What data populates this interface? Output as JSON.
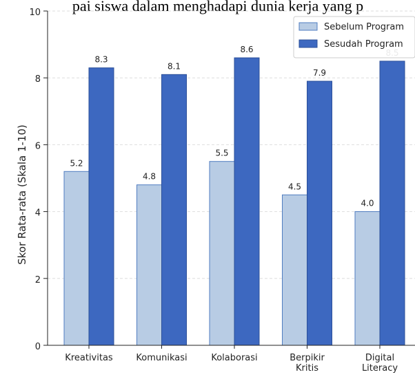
{
  "chart_data": {
    "type": "bar",
    "title": "pai siswa dalam menghadapi dunia kerja yang p",
    "xlabel": "",
    "ylabel": "Skor Rata-rata (Skala 1-10)",
    "ylim": [
      0,
      10
    ],
    "yticks": [
      0,
      2,
      4,
      6,
      8,
      10
    ],
    "categories": [
      "Kreativitas",
      "Komunikasi",
      "Kolaborasi",
      "Berpikir\nKritis",
      "Digital\nLiteracy"
    ],
    "series": [
      {
        "name": "Sebelum Program",
        "values": [
          5.2,
          4.8,
          5.5,
          4.5,
          4.0
        ],
        "color": "#b8cce4",
        "edge": "#4f7cc0"
      },
      {
        "name": "Sesudah Program",
        "values": [
          8.3,
          8.1,
          8.6,
          7.9,
          8.5
        ],
        "color": "#3d68c0",
        "edge": "#2b4f99"
      }
    ],
    "data_labels": [
      [
        "5.2",
        "4.8",
        "5.5",
        "4.5",
        "4.0"
      ],
      [
        "8.3",
        "8.1",
        "8.6",
        "7.9",
        "8.5"
      ]
    ],
    "grid": "y-dashed",
    "legend": "top-right"
  }
}
